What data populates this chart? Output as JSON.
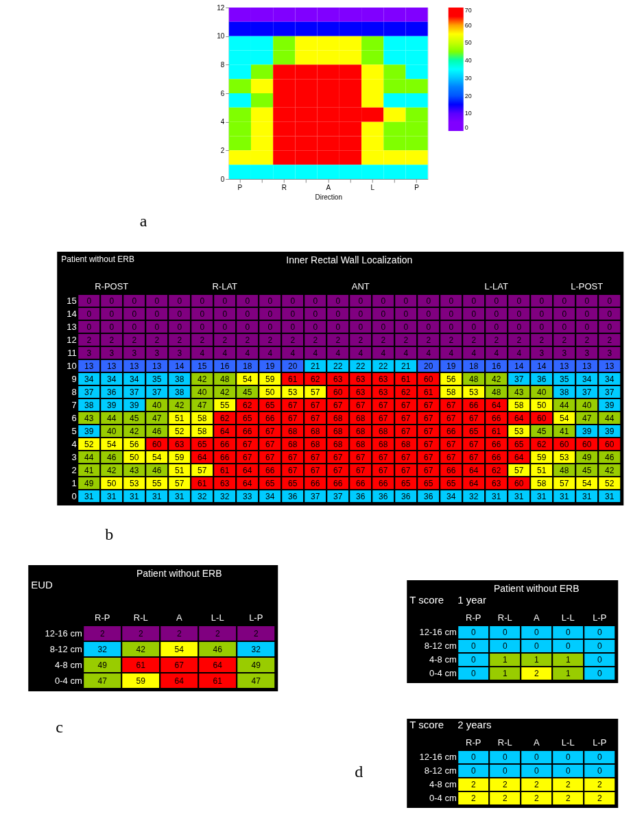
{
  "chart_data": [
    {
      "type": "heatmap",
      "xlabel": "Direction",
      "categories": [
        "P",
        null,
        "R",
        null,
        "A",
        null,
        "L",
        null,
        "P"
      ],
      "ylim": [
        0,
        12
      ],
      "yticks": [
        0,
        2,
        4,
        6,
        8,
        10,
        12
      ],
      "clim": [
        0,
        70
      ],
      "cticks": [
        0,
        10,
        20,
        30,
        40,
        50,
        60,
        70
      ],
      "annotations": [
        "a"
      ],
      "cells": [
        [
          5,
          5,
          5,
          5,
          5,
          5,
          5,
          5,
          5
        ],
        [
          15,
          15,
          15,
          15,
          15,
          15,
          15,
          15,
          15
        ],
        [
          35,
          35,
          45,
          55,
          55,
          55,
          45,
          35,
          35
        ],
        [
          35,
          35,
          45,
          55,
          55,
          55,
          45,
          35,
          35
        ],
        [
          35,
          45,
          65,
          65,
          65,
          65,
          55,
          45,
          35
        ],
        [
          45,
          55,
          65,
          65,
          65,
          65,
          55,
          45,
          45
        ],
        [
          35,
          45,
          65,
          65,
          65,
          65,
          55,
          35,
          35
        ],
        [
          45,
          55,
          65,
          65,
          65,
          65,
          65,
          55,
          45
        ],
        [
          45,
          55,
          65,
          65,
          65,
          65,
          55,
          45,
          45
        ],
        [
          45,
          55,
          65,
          65,
          65,
          65,
          55,
          45,
          45
        ],
        [
          55,
          55,
          65,
          65,
          65,
          65,
          55,
          55,
          55
        ],
        [
          35,
          35,
          35,
          35,
          35,
          35,
          35,
          35,
          35
        ]
      ]
    },
    {
      "type": "heatmap",
      "title": "Inner Rectal Wall Localization",
      "annotations": [
        "Patient without ERB",
        "b"
      ],
      "data_labels": true,
      "categories": [
        null,
        "R-POST",
        null,
        null,
        null,
        null,
        "R-LAT",
        null,
        null,
        null,
        null,
        null,
        "ANT",
        null,
        null,
        null,
        null,
        null,
        "L-LAT",
        null,
        null,
        null,
        "L-POST",
        null
      ],
      "y_categories": [
        "15",
        "14",
        "13",
        "12",
        "11",
        "10",
        "9",
        "8",
        "7",
        "6",
        "5",
        "4",
        "3",
        "2",
        "1",
        "0"
      ],
      "cells": [
        [
          0,
          0,
          0,
          0,
          0,
          0,
          0,
          0,
          0,
          0,
          0,
          0,
          0,
          0,
          0,
          0,
          0,
          0,
          0,
          0,
          0,
          0,
          0,
          0
        ],
        [
          0,
          0,
          0,
          0,
          0,
          0,
          0,
          0,
          0,
          0,
          0,
          0,
          0,
          0,
          0,
          0,
          0,
          0,
          0,
          0,
          0,
          0,
          0,
          0
        ],
        [
          0,
          0,
          0,
          0,
          0,
          0,
          0,
          0,
          0,
          0,
          0,
          0,
          0,
          0,
          0,
          0,
          0,
          0,
          0,
          0,
          0,
          0,
          0,
          0
        ],
        [
          2,
          2,
          2,
          2,
          2,
          2,
          2,
          2,
          2,
          2,
          2,
          2,
          2,
          2,
          2,
          2,
          2,
          2,
          2,
          2,
          2,
          2,
          2,
          2
        ],
        [
          3,
          3,
          3,
          3,
          3,
          4,
          4,
          4,
          4,
          4,
          4,
          4,
          4,
          4,
          4,
          4,
          4,
          4,
          4,
          4,
          3,
          3,
          3,
          3
        ],
        [
          13,
          13,
          13,
          13,
          14,
          15,
          16,
          18,
          19,
          20,
          21,
          22,
          22,
          22,
          21,
          20,
          19,
          18,
          16,
          14,
          14,
          13,
          13,
          13
        ],
        [
          34,
          34,
          34,
          35,
          38,
          42,
          48,
          54,
          59,
          61,
          62,
          63,
          63,
          63,
          61,
          60,
          56,
          48,
          42,
          37,
          36,
          35,
          34,
          34
        ],
        [
          37,
          36,
          37,
          37,
          38,
          40,
          42,
          45,
          50,
          53,
          57,
          60,
          63,
          63,
          62,
          61,
          58,
          53,
          48,
          43,
          40,
          38,
          37,
          37
        ],
        [
          38,
          39,
          39,
          40,
          42,
          47,
          55,
          62,
          65,
          67,
          67,
          67,
          67,
          67,
          67,
          67,
          67,
          66,
          64,
          58,
          50,
          44,
          40,
          39
        ],
        [
          43,
          44,
          45,
          47,
          51,
          58,
          62,
          65,
          66,
          67,
          67,
          68,
          68,
          67,
          67,
          67,
          67,
          67,
          66,
          64,
          60,
          54,
          47,
          44
        ],
        [
          39,
          40,
          42,
          46,
          52,
          58,
          64,
          66,
          67,
          68,
          68,
          68,
          68,
          68,
          67,
          67,
          66,
          65,
          61,
          53,
          45,
          41,
          39,
          39
        ],
        [
          52,
          54,
          56,
          60,
          63,
          65,
          66,
          67,
          67,
          68,
          68,
          68,
          68,
          68,
          68,
          67,
          67,
          67,
          66,
          65,
          62,
          60,
          60,
          60
        ],
        [
          44,
          46,
          50,
          54,
          59,
          64,
          66,
          67,
          67,
          67,
          67,
          67,
          67,
          67,
          67,
          67,
          67,
          67,
          66,
          64,
          59,
          53,
          49,
          46
        ],
        [
          41,
          42,
          43,
          46,
          51,
          57,
          61,
          64,
          66,
          67,
          67,
          67,
          67,
          67,
          67,
          67,
          66,
          64,
          62,
          57,
          51,
          48,
          45,
          42
        ],
        [
          49,
          50,
          53,
          55,
          57,
          61,
          63,
          64,
          65,
          65,
          66,
          66,
          66,
          66,
          65,
          65,
          65,
          64,
          63,
          60,
          58,
          57,
          54,
          52
        ],
        [
          31,
          31,
          31,
          31,
          31,
          32,
          32,
          33,
          34,
          36,
          37,
          37,
          36,
          36,
          36,
          36,
          34,
          32,
          31,
          31,
          31,
          31,
          31,
          31
        ]
      ]
    },
    {
      "type": "heatmap",
      "title": "Patient without ERB",
      "ylabel": "EUD",
      "categories": [
        "R-P",
        "R-L",
        "A",
        "L-L",
        "L-P"
      ],
      "y_categories": [
        "12-16 cm",
        "8-12 cm",
        "4-8 cm",
        "0-4 cm"
      ],
      "data_labels": true,
      "annotations": [
        "c"
      ],
      "cells": [
        [
          2,
          2,
          2,
          2,
          2
        ],
        [
          32,
          42,
          54,
          46,
          32
        ],
        [
          49,
          61,
          67,
          64,
          49
        ],
        [
          47,
          59,
          64,
          61,
          47
        ]
      ]
    },
    {
      "type": "heatmap",
      "title": "Patient without ERB",
      "ylabel": "T score",
      "subtitle": "1 year",
      "categories": [
        "R-P",
        "R-L",
        "A",
        "L-L",
        "L-P"
      ],
      "y_categories": [
        "12-16 cm",
        "8-12 cm",
        "4-8 cm",
        "0-4 cm"
      ],
      "data_labels": true,
      "cells": [
        [
          0,
          0,
          0,
          0,
          0
        ],
        [
          0,
          0,
          0,
          0,
          0
        ],
        [
          0,
          1,
          1,
          1,
          0
        ],
        [
          0,
          1,
          2,
          1,
          0
        ]
      ]
    },
    {
      "type": "heatmap",
      "ylabel": "T score",
      "subtitle": "2 years",
      "categories": [
        "R-P",
        "R-L",
        "A",
        "L-L",
        "L-P"
      ],
      "y_categories": [
        "12-16 cm",
        "8-12 cm",
        "4-8 cm",
        "0-4 cm"
      ],
      "data_labels": true,
      "annotations": [
        "d"
      ],
      "cells": [
        [
          0,
          0,
          0,
          0,
          0
        ],
        [
          0,
          0,
          0,
          0,
          0
        ],
        [
          2,
          2,
          2,
          2,
          2
        ],
        [
          2,
          2,
          2,
          2,
          2
        ]
      ]
    }
  ]
}
